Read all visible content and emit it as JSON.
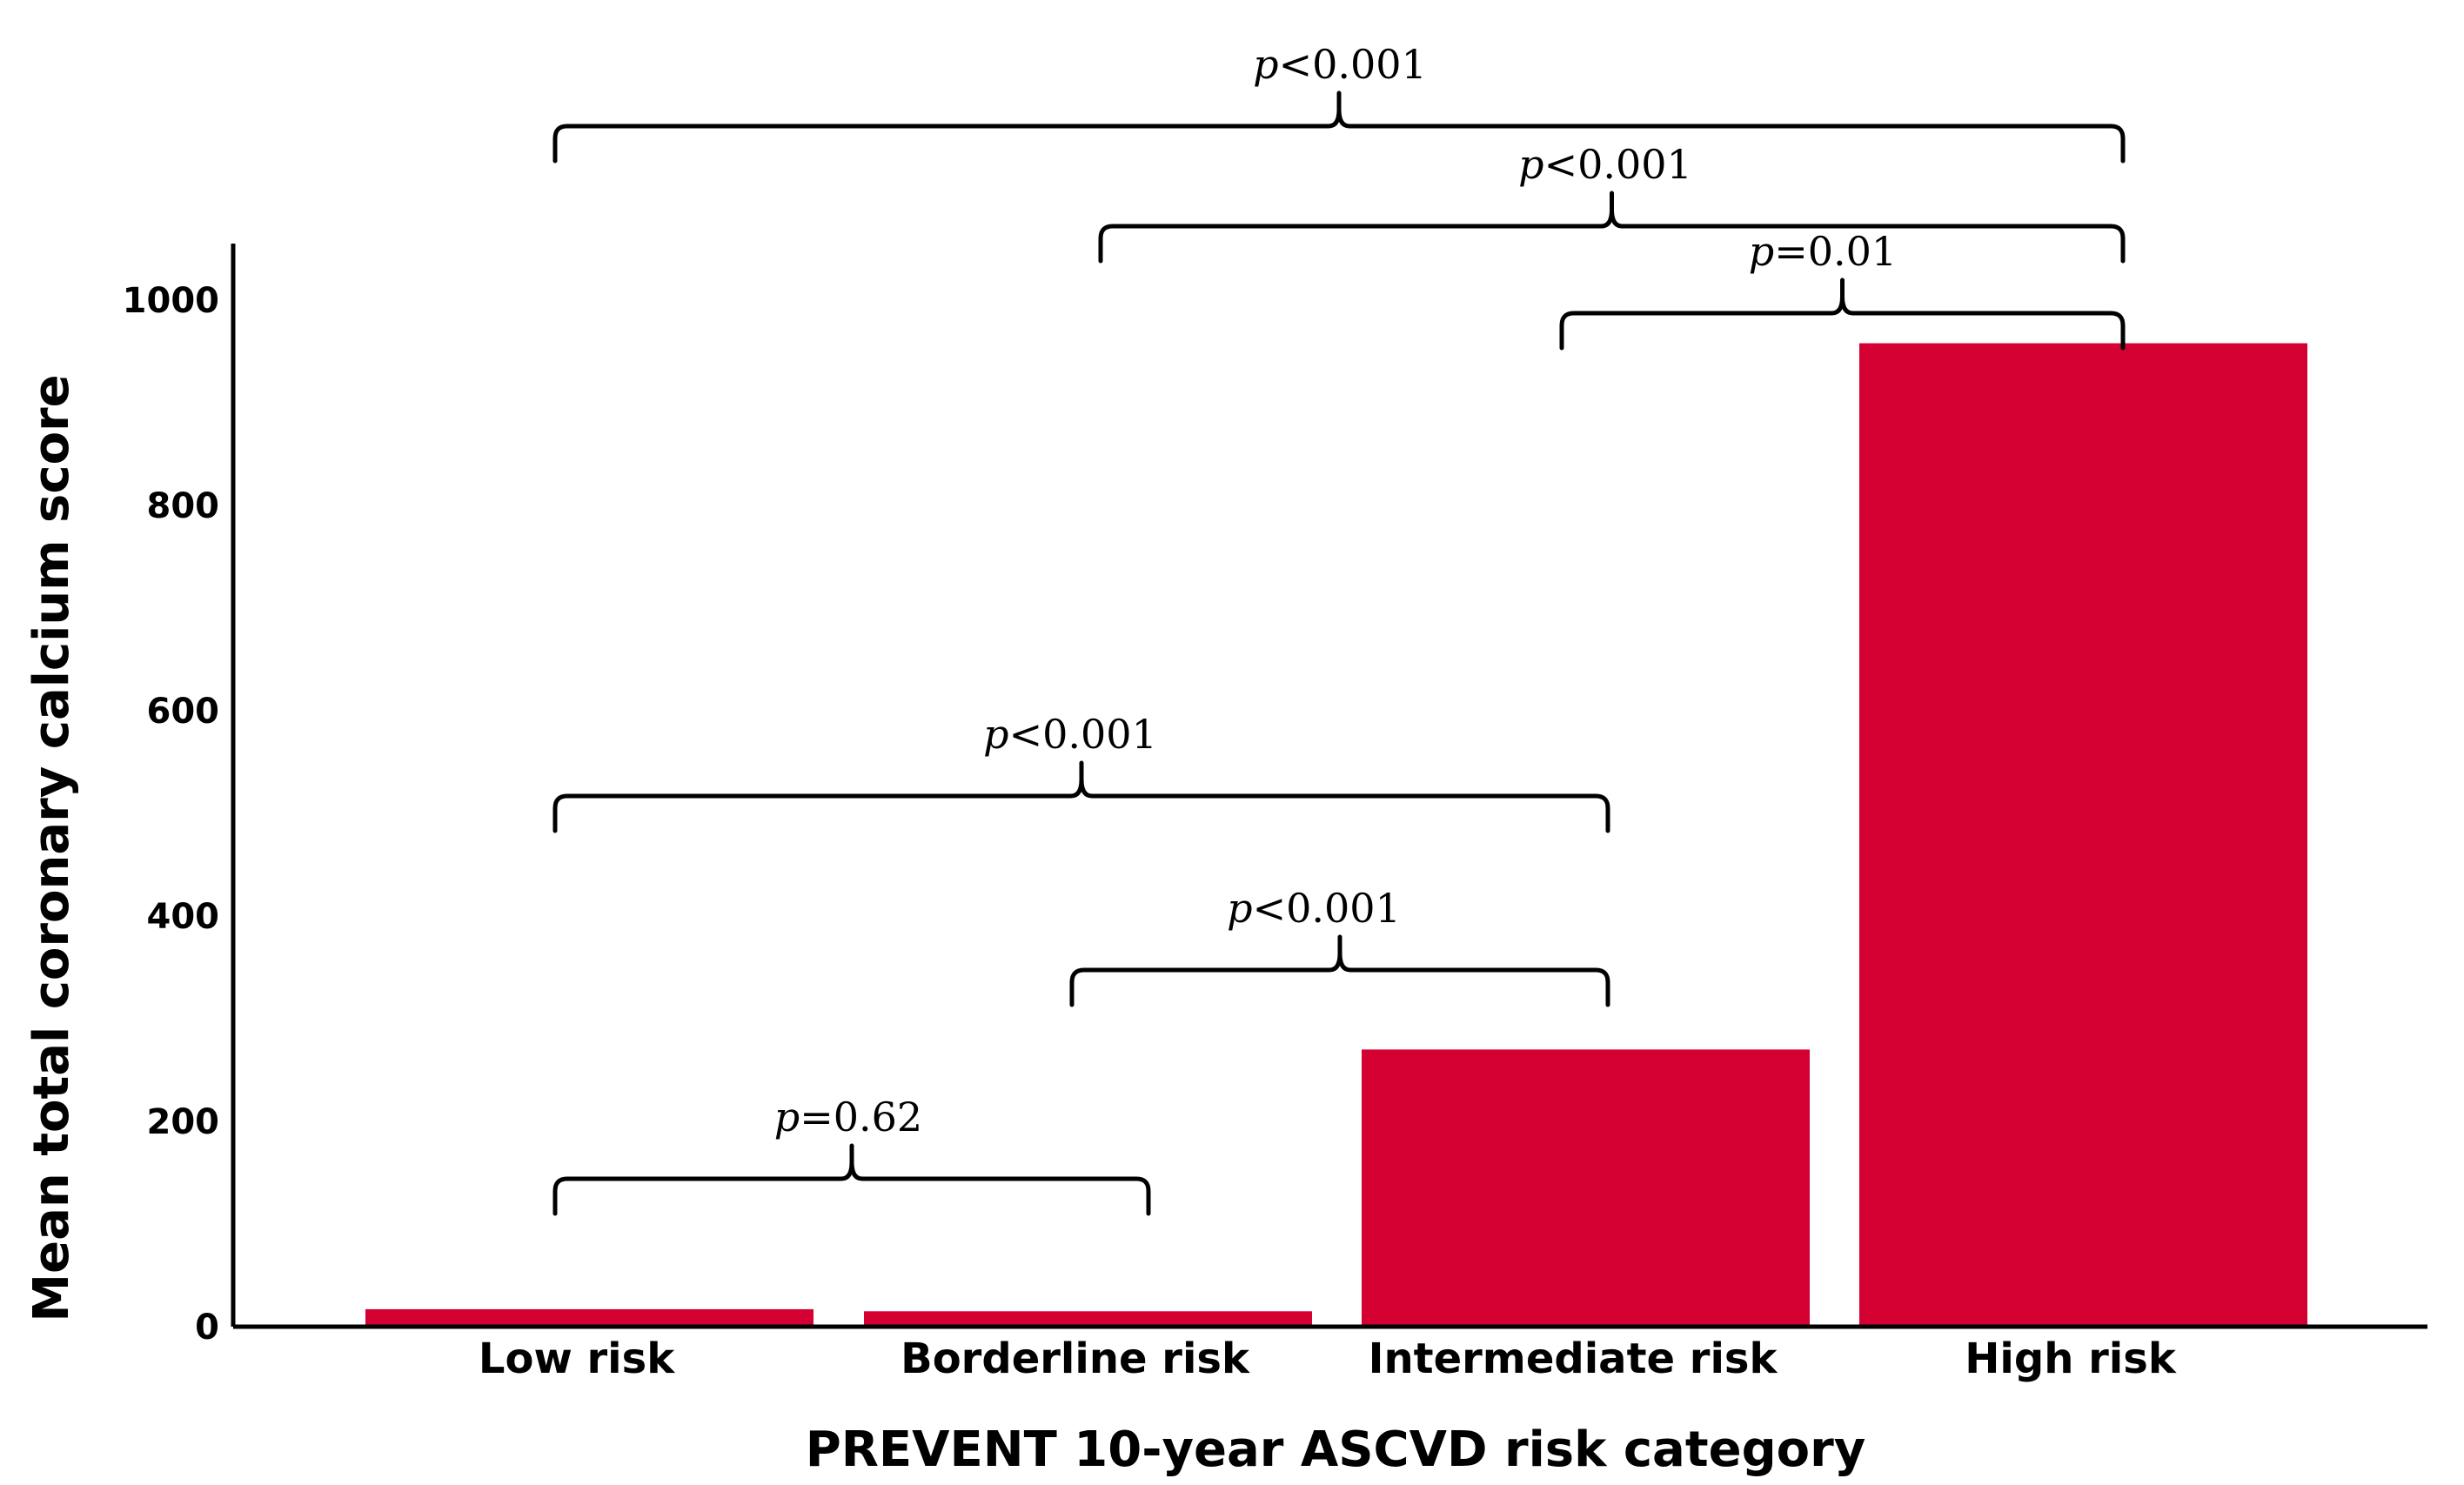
{
  "chart_data": {
    "type": "bar",
    "categories": [
      "Low risk",
      "Borderline risk",
      "Intermediate risk",
      "High risk"
    ],
    "values": [
      17,
      15,
      270,
      958
    ],
    "xlabel": "PREVENT 10-year ASCVD risk category",
    "ylabel": "Mean total coronary calcium score",
    "ylim": [
      0,
      1050
    ],
    "yticks": [
      0,
      200,
      400,
      600,
      800,
      1000
    ],
    "bar_color": "#D50032",
    "grid": false,
    "comparisons": [
      {
        "from": "Low risk",
        "to": "Borderline risk",
        "symbol": "p",
        "text": "=0.62"
      },
      {
        "from": "Borderline risk",
        "to": "Intermediate risk",
        "symbol": "p",
        "text": "<0.001"
      },
      {
        "from": "Low risk",
        "to": "Intermediate risk",
        "symbol": "p",
        "text": "<0.001"
      },
      {
        "from": "Intermediate risk",
        "to": "High risk",
        "symbol": "p",
        "text": "=0.01"
      },
      {
        "from": "Borderline risk",
        "to": "High risk",
        "symbol": "p",
        "text": "<0.001"
      },
      {
        "from": "Low risk",
        "to": "High risk",
        "symbol": "p",
        "text": "<0.001"
      }
    ]
  }
}
